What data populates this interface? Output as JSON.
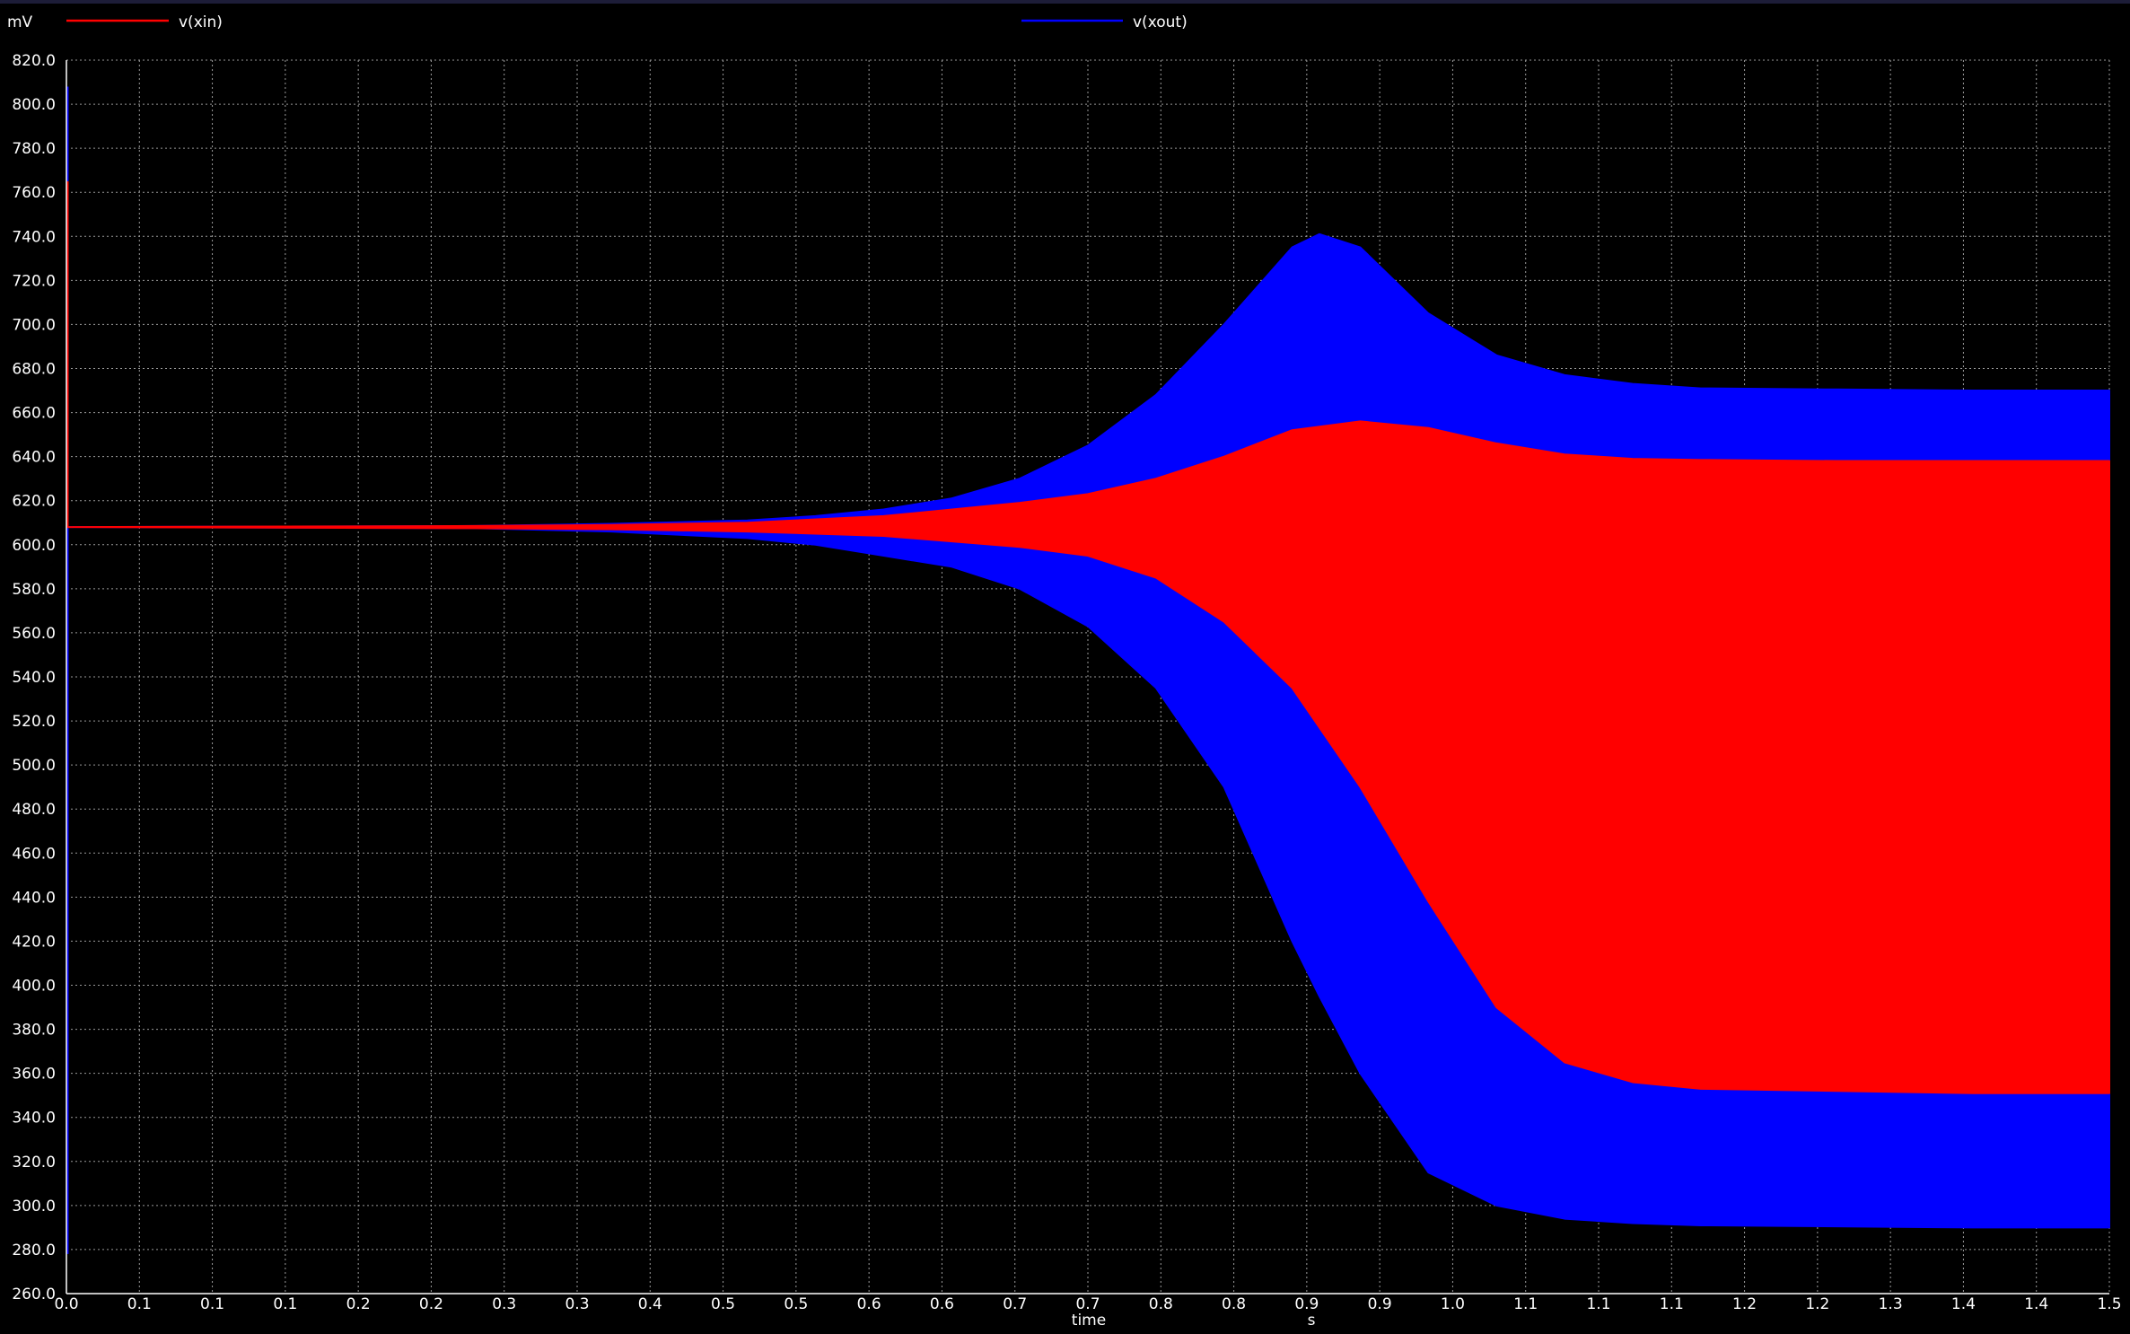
{
  "chart_data": {
    "type": "line",
    "y_unit": "mV",
    "x_unit": "s",
    "xlabel": "time",
    "ylabel": "",
    "xlim": [
      0,
      1.5
    ],
    "ylim": [
      260,
      820
    ],
    "grid": true,
    "legend_position": "top",
    "x_tick_labels": [
      "0.0",
      "0.1",
      "0.1",
      "0.1",
      "0.2",
      "0.2",
      "0.3",
      "0.3",
      "0.4",
      "0.5",
      "0.5",
      "0.6",
      "0.6",
      "0.7",
      "0.7",
      "0.8",
      "0.8",
      "0.9",
      "0.9",
      "1.0",
      "1.1",
      "1.1",
      "1.1",
      "1.2",
      "1.2",
      "1.3",
      "1.4",
      "1.4",
      "1.5"
    ],
    "y_tick_labels": [
      "820.0",
      "800.0",
      "780.0",
      "760.0",
      "740.0",
      "720.0",
      "700.0",
      "680.0",
      "660.0",
      "640.0",
      "620.0",
      "600.0",
      "580.0",
      "560.0",
      "540.0",
      "520.0",
      "500.0",
      "480.0",
      "460.0",
      "440.0",
      "420.0",
      "400.0",
      "380.0",
      "360.0",
      "340.0",
      "320.0",
      "300.0",
      "280.0",
      "260.0"
    ],
    "series": [
      {
        "name": "v(xout)",
        "color": "#0000ff",
        "initial_spike": [
          278,
          808
        ],
        "envelope": {
          "t": [
            0.005,
            0.3,
            0.4,
            0.5,
            0.55,
            0.6,
            0.65,
            0.7,
            0.75,
            0.8,
            0.85,
            0.9,
            0.92,
            0.95,
            1.0,
            1.05,
            1.1,
            1.15,
            1.2,
            1.3,
            1.4,
            1.5
          ],
          "upper": [
            608,
            608.5,
            609.5,
            611,
            613,
            616,
            621,
            630,
            645,
            668,
            700,
            735,
            741,
            735,
            705,
            686,
            677,
            673,
            671,
            670.5,
            670,
            670
          ],
          "lower": [
            608,
            607.5,
            606,
            603,
            600,
            595,
            590,
            580,
            563,
            535,
            490,
            420,
            395,
            360,
            315,
            300,
            294,
            292,
            291,
            290.5,
            290,
            290
          ]
        }
      },
      {
        "name": "v(xin)",
        "color": "#ff0000",
        "initial_spike": [
          608,
          765
        ],
        "envelope": {
          "t": [
            0.005,
            0.3,
            0.4,
            0.5,
            0.6,
            0.7,
            0.75,
            0.8,
            0.85,
            0.9,
            0.95,
            1.0,
            1.05,
            1.1,
            1.15,
            1.2,
            1.3,
            1.4,
            1.5
          ],
          "upper": [
            608,
            608.5,
            609,
            610,
            613,
            619,
            623,
            630,
            640,
            652,
            656,
            653,
            646,
            641,
            639,
            638.5,
            638,
            638,
            638
          ],
          "lower": [
            608,
            607.5,
            607,
            606,
            604,
            599,
            595,
            585,
            565,
            535,
            490,
            438,
            390,
            365,
            356,
            353,
            352,
            351,
            351
          ]
        }
      }
    ]
  }
}
